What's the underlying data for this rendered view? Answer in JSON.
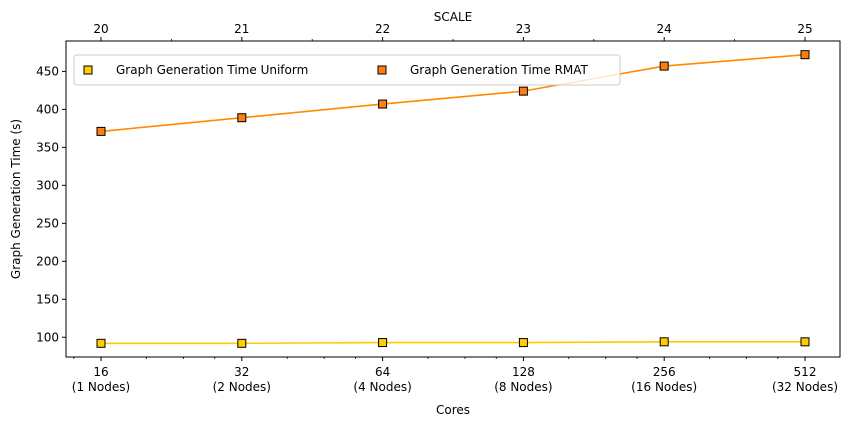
{
  "chart_data": {
    "type": "line",
    "xlabel": "Cores",
    "ylabel": "Graph Generation Time (s)",
    "top_xlabel": "SCALE",
    "x_scale": "log2",
    "x": [
      16,
      32,
      64,
      128,
      256,
      512
    ],
    "x_tick_labels": [
      [
        "16",
        "(1 Nodes)"
      ],
      [
        "32",
        "(2 Nodes)"
      ],
      [
        "64",
        "(4 Nodes)"
      ],
      [
        "128",
        "(8 Nodes)"
      ],
      [
        "256",
        "(16 Nodes)"
      ],
      [
        "512",
        "(32 Nodes)"
      ]
    ],
    "top_x_tick_labels": [
      "20",
      "21",
      "22",
      "23",
      "24",
      "25"
    ],
    "y_ticks": [
      100,
      150,
      200,
      250,
      300,
      350,
      400,
      450
    ],
    "ylim": [
      74,
      490
    ],
    "series": [
      {
        "name": "Graph Generation Time Uniform",
        "values": [
          92,
          92,
          93,
          93,
          94,
          94
        ],
        "color": "#ffcc00",
        "line_color": "#ffcc00",
        "marker": "square"
      },
      {
        "name": "Graph Generation Time RMAT",
        "values": [
          371,
          389,
          407,
          424,
          457,
          472
        ],
        "color": "#ff7f0e",
        "line_color": "#ff8a00",
        "marker": "square"
      }
    ],
    "legend_position": "top-left",
    "grid": false
  }
}
